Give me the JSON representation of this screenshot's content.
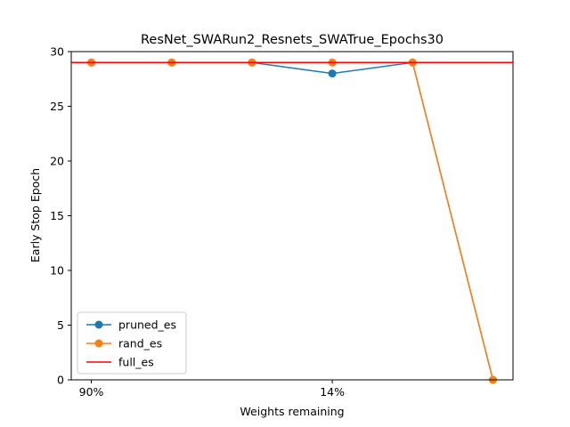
{
  "chart_data": {
    "type": "line",
    "title": "ResNet_SWARun2_Resnets_SWATrue_Epochs30",
    "xlabel": "Weights remaining",
    "ylabel": "Early Stop Epoch",
    "x": [
      0,
      1,
      2,
      3,
      4,
      5
    ],
    "x_ticks": [
      {
        "x": 0,
        "label": "90%"
      },
      {
        "x": 3,
        "label": "14%"
      }
    ],
    "xlim": [
      -0.25,
      5.25
    ],
    "ylim": [
      0,
      30
    ],
    "y_ticks": [
      0,
      5,
      10,
      15,
      20,
      25,
      30
    ],
    "grid": false,
    "legend_position": "lower-left",
    "series": [
      {
        "name": "pruned_es",
        "type": "line-marker",
        "color": "#1f77b4",
        "values": [
          29,
          29,
          29,
          28,
          29,
          0
        ]
      },
      {
        "name": "rand_es",
        "type": "line-marker",
        "color": "#ff7f0e",
        "values": [
          29,
          29,
          29,
          29,
          29,
          0
        ]
      },
      {
        "name": "full_es",
        "type": "hline",
        "color": "#ff0000",
        "value": 29
      }
    ]
  }
}
